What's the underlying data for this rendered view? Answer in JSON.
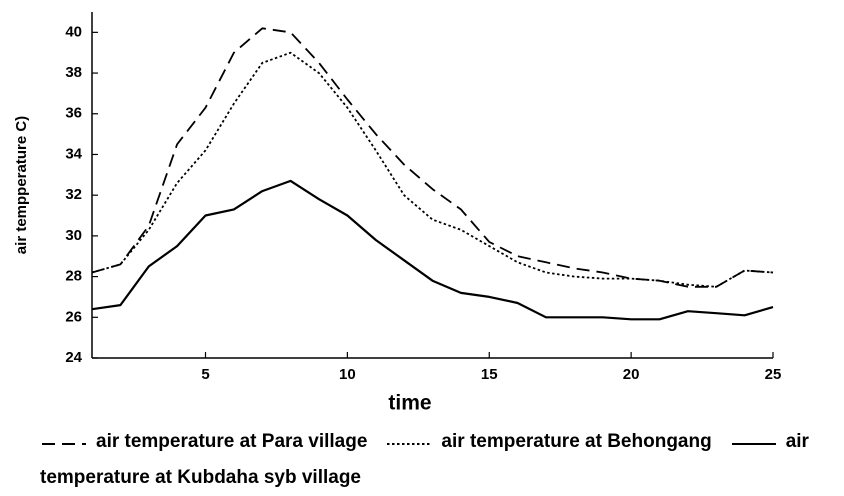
{
  "chart_data": {
    "type": "line",
    "x": [
      1,
      2,
      3,
      4,
      5,
      6,
      7,
      8,
      9,
      10,
      11,
      12,
      13,
      14,
      15,
      16,
      17,
      18,
      19,
      20,
      21,
      22,
      23,
      24,
      25
    ],
    "series": [
      {
        "name": "air temperature at  Para village",
        "color": "#000000",
        "dash": "dashed",
        "values": [
          28.2,
          28.6,
          30.5,
          34.5,
          36.3,
          39,
          40.2,
          40,
          38.5,
          36.7,
          35,
          33.5,
          32.3,
          31.3,
          29.7,
          29,
          28.7,
          28.4,
          28.2,
          27.9,
          27.8,
          27.5,
          27.5,
          28.3,
          28.2
        ]
      },
      {
        "name": "air temperature at Behongang",
        "color": "#000000",
        "dash": "dotted",
        "values": [
          28.2,
          28.6,
          30.3,
          32.6,
          34.2,
          36.5,
          38.5,
          39,
          38,
          36.3,
          34.2,
          32,
          30.8,
          30.3,
          29.5,
          28.7,
          28.2,
          28,
          27.9,
          27.9,
          27.8,
          27.6,
          27.5,
          28.3,
          28.2
        ]
      },
      {
        "name": "air temperature at  Kubdaha syb village",
        "color": "#000000",
        "dash": "solid",
        "values": [
          26.4,
          26.6,
          28.5,
          29.5,
          31,
          31.3,
          32.2,
          32.7,
          31.8,
          31,
          29.8,
          28.8,
          27.8,
          27.2,
          27,
          26.7,
          26,
          26,
          26,
          25.9,
          25.9,
          26.3,
          26.2,
          26.1,
          26.5
        ]
      }
    ],
    "x_label": "time",
    "y_label": "air tempperature C)",
    "xlim": [
      1,
      25
    ],
    "xticks": [
      5,
      10,
      15,
      20,
      25
    ],
    "ylim": [
      24,
      41
    ],
    "yticks": [
      24,
      26,
      28,
      30,
      32,
      34,
      36,
      38,
      40
    ]
  }
}
